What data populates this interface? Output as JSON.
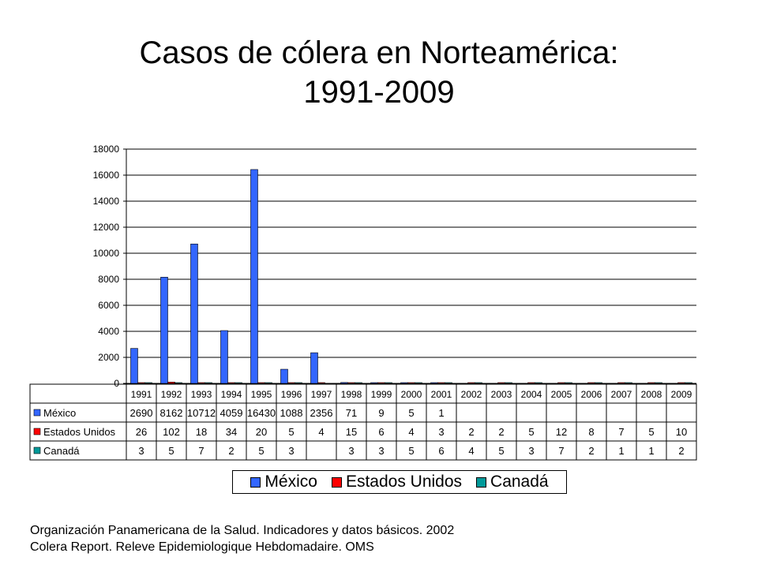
{
  "title_line1": "Casos de cólera en Norteamérica:",
  "title_line2": "1991-2009",
  "chart_data": {
    "type": "bar",
    "title": "Casos de cólera en Norteamérica: 1991-2009",
    "xlabel": "",
    "ylabel": "",
    "ylim": [
      0,
      18000
    ],
    "yticks": [
      0,
      2000,
      4000,
      6000,
      8000,
      10000,
      12000,
      14000,
      16000,
      18000
    ],
    "grid": true,
    "legend_position": "bottom",
    "categories": [
      "1991",
      "1992",
      "1993",
      "1994",
      "1995",
      "1996",
      "1997",
      "1998",
      "1999",
      "2000",
      "2001",
      "2002",
      "2003",
      "2004",
      "2005",
      "2006",
      "2007",
      "2008",
      "2009"
    ],
    "series": [
      {
        "name": "México",
        "color": "#3366ff",
        "values": [
          2690,
          8162,
          10712,
          4059,
          16430,
          1088,
          2356,
          71,
          9,
          5,
          1,
          null,
          null,
          null,
          null,
          null,
          null,
          null,
          null
        ]
      },
      {
        "name": "Estados Unidos",
        "color": "#ff0000",
        "values": [
          26,
          102,
          18,
          34,
          20,
          5,
          4,
          15,
          6,
          4,
          3,
          2,
          2,
          5,
          12,
          8,
          7,
          5,
          10
        ]
      },
      {
        "name": "Canadá",
        "color": "#009999",
        "values": [
          3,
          5,
          7,
          2,
          5,
          3,
          null,
          3,
          3,
          5,
          6,
          4,
          5,
          3,
          7,
          2,
          1,
          1,
          2
        ]
      }
    ]
  },
  "source_line1": "Organización Panamericana de la Salud. Indicadores y datos básicos. 2002",
  "source_line2": "Colera Report. Releve Epidemiologique Hebdomadaire. OMS"
}
